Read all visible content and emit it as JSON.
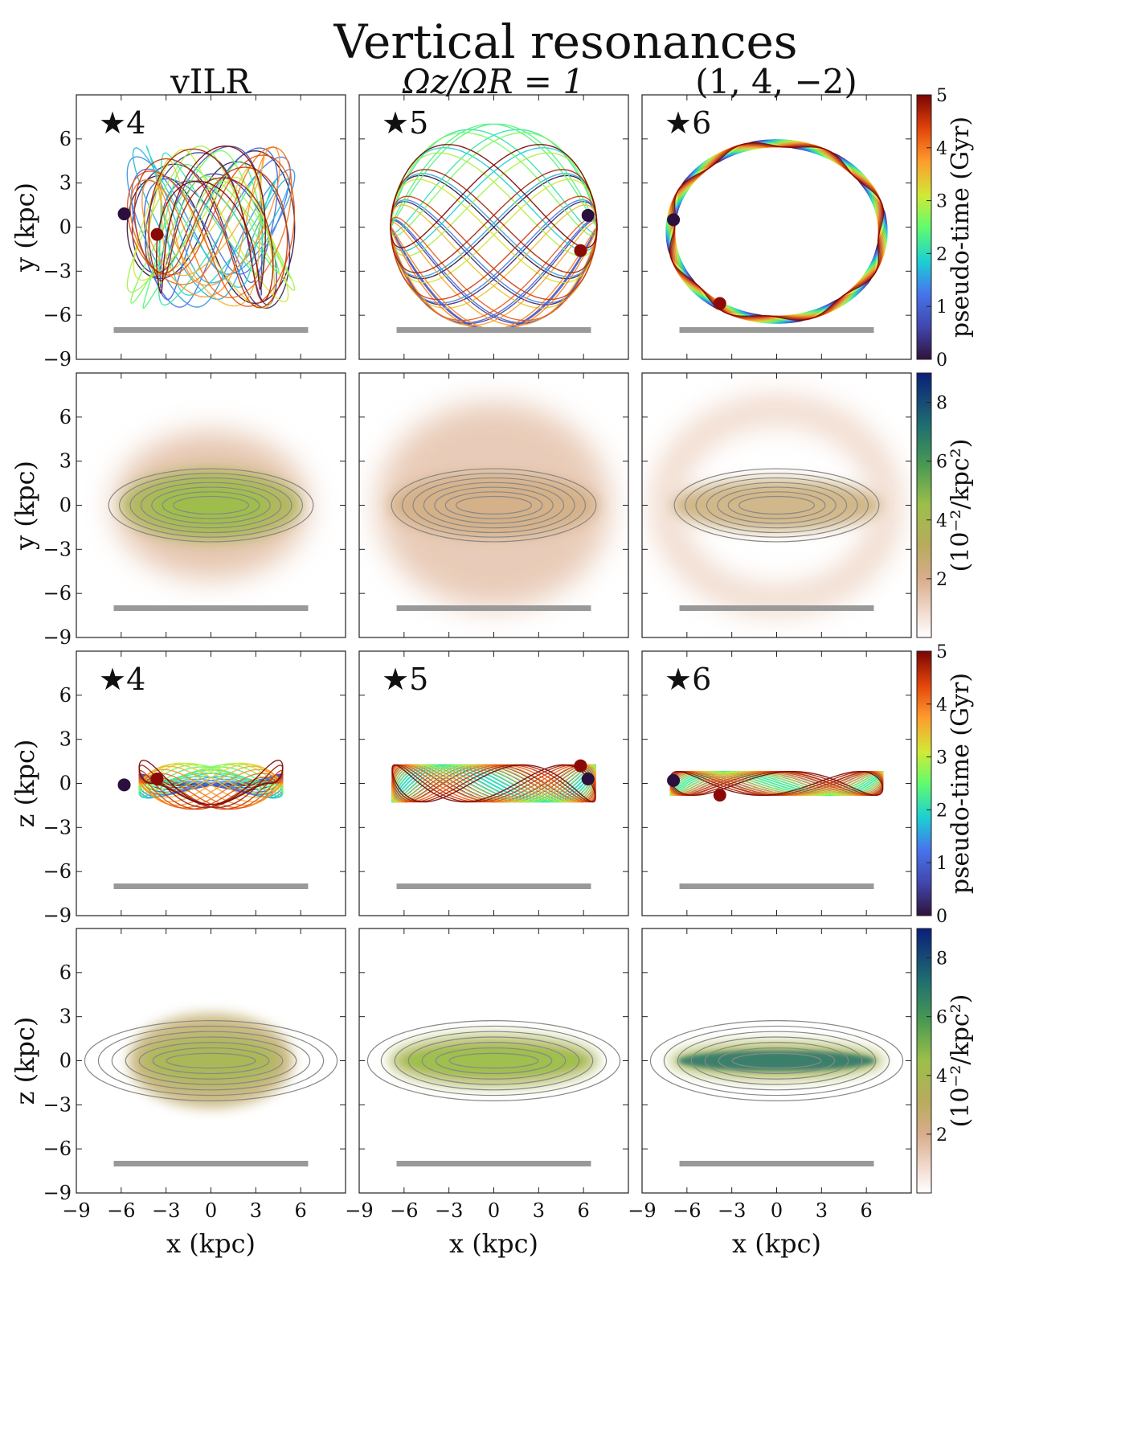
{
  "figure": {
    "title": "Vertical resonances",
    "columns": [
      "vILR",
      "Ωz/ΩR = 1",
      "(1, 4, −2)"
    ],
    "colors": {
      "orbit_start": "#2b0f3f",
      "orbit_end": "#8b0a07",
      "bar_ruler": "#999999",
      "contour": "#888888"
    }
  },
  "chart_data": [
    {
      "type": "line",
      "row": 1,
      "panel_type": "orbit",
      "view": "face-on",
      "xlabel": "x (kpc)",
      "ylabel": "y (kpc)",
      "xlim": [
        -9,
        9
      ],
      "ylim": [
        -9,
        9
      ],
      "xticks": [
        -9,
        -6,
        -3,
        0,
        3,
        6
      ],
      "yticks": [
        -9,
        -6,
        -3,
        0,
        3,
        6
      ],
      "colorbar": {
        "label": "pseudo-time (Gyr)",
        "range": [
          0,
          5
        ],
        "ticks": [
          0,
          1,
          2,
          3,
          4,
          5
        ],
        "cmap": "turbo"
      },
      "panels": [
        {
          "column": "vILR",
          "star": "4",
          "a": 5.6,
          "b": 4.8,
          "zmax": 0,
          "n_loops": 22,
          "start_point": [
            -5.8,
            0.9
          ],
          "end_point": [
            -3.6,
            -0.5
          ]
        },
        {
          "column": "Ωz/ΩR = 1",
          "star": "5",
          "a": 6.9,
          "b": 5.4,
          "zmax": 0,
          "n_loops": 20,
          "start_point": [
            6.3,
            0.8
          ],
          "end_point": [
            5.8,
            -1.6
          ]
        },
        {
          "column": "(1, 4, −2)",
          "star": "6",
          "a": 7.1,
          "b": 6.0,
          "zmax": 0,
          "n_loops": 18,
          "start_point": [
            -6.9,
            0.5
          ],
          "end_point": [
            -3.8,
            -5.2
          ]
        }
      ]
    },
    {
      "type": "heatmap",
      "row": 2,
      "panel_type": "density",
      "view": "face-on",
      "xlabel": "x (kpc)",
      "ylabel": "y (kpc)",
      "xlim": [
        -9,
        9
      ],
      "ylim": [
        -9,
        9
      ],
      "xticks": [
        -9,
        -6,
        -3,
        0,
        3,
        6
      ],
      "yticks": [
        -9,
        -6,
        -3,
        0,
        3,
        6
      ],
      "colorbar": {
        "label": "(10⁻²/kpc²)",
        "range": [
          0,
          9
        ],
        "ticks": [
          2,
          4,
          6,
          8
        ],
        "cmap": "gist_earth_r"
      },
      "contours": "bar surface density (gray)",
      "panels": [
        {
          "column": "vILR",
          "peak": 4.5,
          "shape": "central bar"
        },
        {
          "column": "Ωz/ΩR = 1",
          "peak": 3.2,
          "shape": "bar ends + ring"
        },
        {
          "column": "(1, 4, −2)",
          "peak": 2.8,
          "shape": "ring"
        }
      ]
    },
    {
      "type": "line",
      "row": 3,
      "panel_type": "orbit",
      "view": "edge-on",
      "xlabel": "x (kpc)",
      "ylabel": "z (kpc)",
      "xlim": [
        -9,
        9
      ],
      "ylim": [
        -9,
        9
      ],
      "xticks": [
        -9,
        -6,
        -3,
        0,
        3,
        6
      ],
      "yticks": [
        -9,
        -6,
        -3,
        0,
        3,
        6
      ],
      "colorbar": {
        "label": "pseudo-time (Gyr)",
        "range": [
          0,
          5
        ],
        "ticks": [
          0,
          1,
          2,
          3,
          4,
          5
        ],
        "cmap": "turbo"
      },
      "panels": [
        {
          "column": "vILR",
          "star": "4",
          "a": 4.8,
          "zmax": 2.3,
          "n_loops": 22,
          "start_point": [
            -5.8,
            -0.1
          ],
          "end_point": [
            -3.6,
            0.3
          ]
        },
        {
          "column": "Ωz/ΩR = 1",
          "star": "5",
          "a": 6.8,
          "zmax": 1.4,
          "n_loops": 20,
          "start_point": [
            6.3,
            0.3
          ],
          "end_point": [
            5.8,
            1.2
          ]
        },
        {
          "column": "(1, 4, −2)",
          "star": "6",
          "a": 7.1,
          "zmax": 0.9,
          "n_loops": 18,
          "start_point": [
            -6.9,
            0.2
          ],
          "end_point": [
            -3.8,
            -0.8
          ]
        }
      ]
    },
    {
      "type": "heatmap",
      "row": 4,
      "panel_type": "density",
      "view": "edge-on",
      "xlabel": "x (kpc)",
      "ylabel": "z (kpc)",
      "xlim": [
        -9,
        9
      ],
      "ylim": [
        -9,
        9
      ],
      "xticks": [
        -9,
        -6,
        -3,
        0,
        3,
        6
      ],
      "yticks": [
        -9,
        -6,
        -3,
        0,
        3,
        6
      ],
      "colorbar": {
        "label": "(10⁻²/kpc²)",
        "range": [
          0,
          9
        ],
        "ticks": [
          2,
          4,
          6,
          8
        ],
        "cmap": "gist_earth_r"
      },
      "contours": "disc surface density (gray)",
      "panels": [
        {
          "column": "vILR",
          "peak": 4.0,
          "shape": "peanut"
        },
        {
          "column": "Ωz/ΩR = 1",
          "peak": 4.5,
          "shape": "box"
        },
        {
          "column": "(1, 4, −2)",
          "peak": 7.0,
          "shape": "thin bar"
        }
      ]
    }
  ]
}
